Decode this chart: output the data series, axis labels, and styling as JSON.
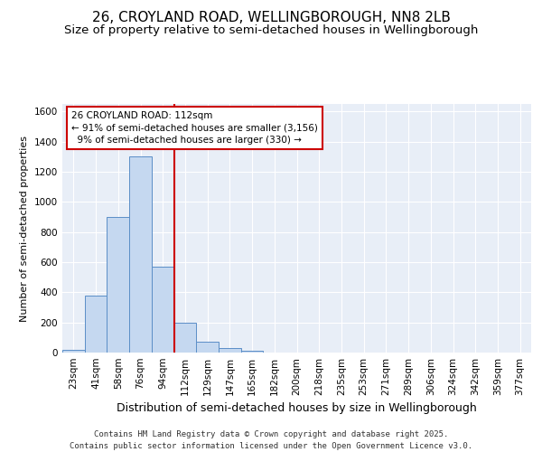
{
  "title": "26, CROYLAND ROAD, WELLINGBOROUGH, NN8 2LB",
  "subtitle": "Size of property relative to semi-detached houses in Wellingborough",
  "xlabel": "Distribution of semi-detached houses by size in Wellingborough",
  "ylabel": "Number of semi-detached properties",
  "categories": [
    "23sqm",
    "41sqm",
    "58sqm",
    "76sqm",
    "94sqm",
    "112sqm",
    "129sqm",
    "147sqm",
    "165sqm",
    "182sqm",
    "200sqm",
    "218sqm",
    "235sqm",
    "253sqm",
    "271sqm",
    "289sqm",
    "306sqm",
    "324sqm",
    "342sqm",
    "359sqm",
    "377sqm"
  ],
  "values": [
    20,
    380,
    900,
    1300,
    570,
    200,
    70,
    30,
    10,
    0,
    0,
    0,
    0,
    0,
    0,
    0,
    0,
    0,
    0,
    0,
    0
  ],
  "bar_color": "#c5d8f0",
  "bar_edge_color": "#5b8ec7",
  "vline_index": 5,
  "pct_smaller": 91,
  "count_smaller": 3156,
  "pct_larger": 9,
  "count_larger": 330,
  "vline_color": "#cc0000",
  "annotation_box_color": "#cc0000",
  "plot_bg_color": "#e8eef7",
  "grid_color": "#ffffff",
  "ylim": [
    0,
    1650
  ],
  "yticks": [
    0,
    200,
    400,
    600,
    800,
    1000,
    1200,
    1400,
    1600
  ],
  "footer": "Contains HM Land Registry data © Crown copyright and database right 2025.\nContains public sector information licensed under the Open Government Licence v3.0.",
  "title_fontsize": 11,
  "subtitle_fontsize": 9.5,
  "xlabel_fontsize": 9,
  "ylabel_fontsize": 8,
  "tick_fontsize": 7.5,
  "annotation_fontsize": 7.5,
  "footer_fontsize": 6.5
}
